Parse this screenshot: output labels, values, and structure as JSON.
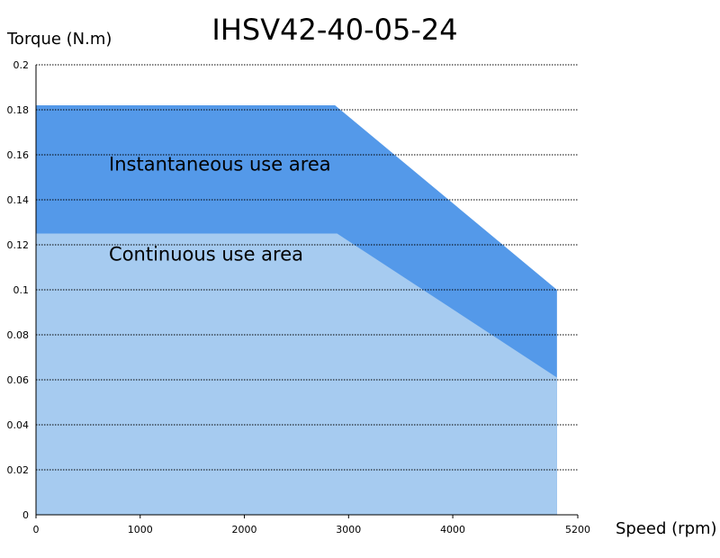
{
  "chart_data": {
    "type": "area",
    "title": "IHSV42-40-05-24",
    "xlabel": "Speed (rpm)",
    "ylabel": "Torque (N.m)",
    "xlim": [
      0,
      5200
    ],
    "ylim": [
      0,
      0.2
    ],
    "x_ticks": [
      0,
      1000,
      2000,
      3000,
      4000,
      5200
    ],
    "y_ticks": [
      0,
      0.02,
      0.04,
      0.06,
      0.08,
      0.1,
      0.12,
      0.14,
      0.16,
      0.18,
      0.2
    ],
    "x_tick_labels": [
      "0",
      "1000",
      "2000",
      "3000",
      "4000",
      "5200"
    ],
    "y_tick_labels": [
      "0",
      "0.02",
      "0.04",
      "0.06",
      "0.08",
      "0.1",
      "0.12",
      "0.14",
      "0.16",
      "0.18",
      "0.2"
    ],
    "grid": true,
    "series": [
      {
        "name": "Instantaneous use area",
        "color": "#5499e9",
        "points": [
          [
            0,
            0.182
          ],
          [
            2870,
            0.182
          ],
          [
            5000,
            0.1
          ]
        ]
      },
      {
        "name": "Continuous use area",
        "color": "#a6cbf0",
        "points": [
          [
            0,
            0.125
          ],
          [
            2890,
            0.125
          ],
          [
            5000,
            0.061
          ]
        ]
      }
    ],
    "annotations": [
      {
        "text": "Instantaneous use area",
        "x": 700,
        "y": 0.153
      },
      {
        "text": "Continuous use area",
        "x": 700,
        "y": 0.113
      }
    ]
  }
}
